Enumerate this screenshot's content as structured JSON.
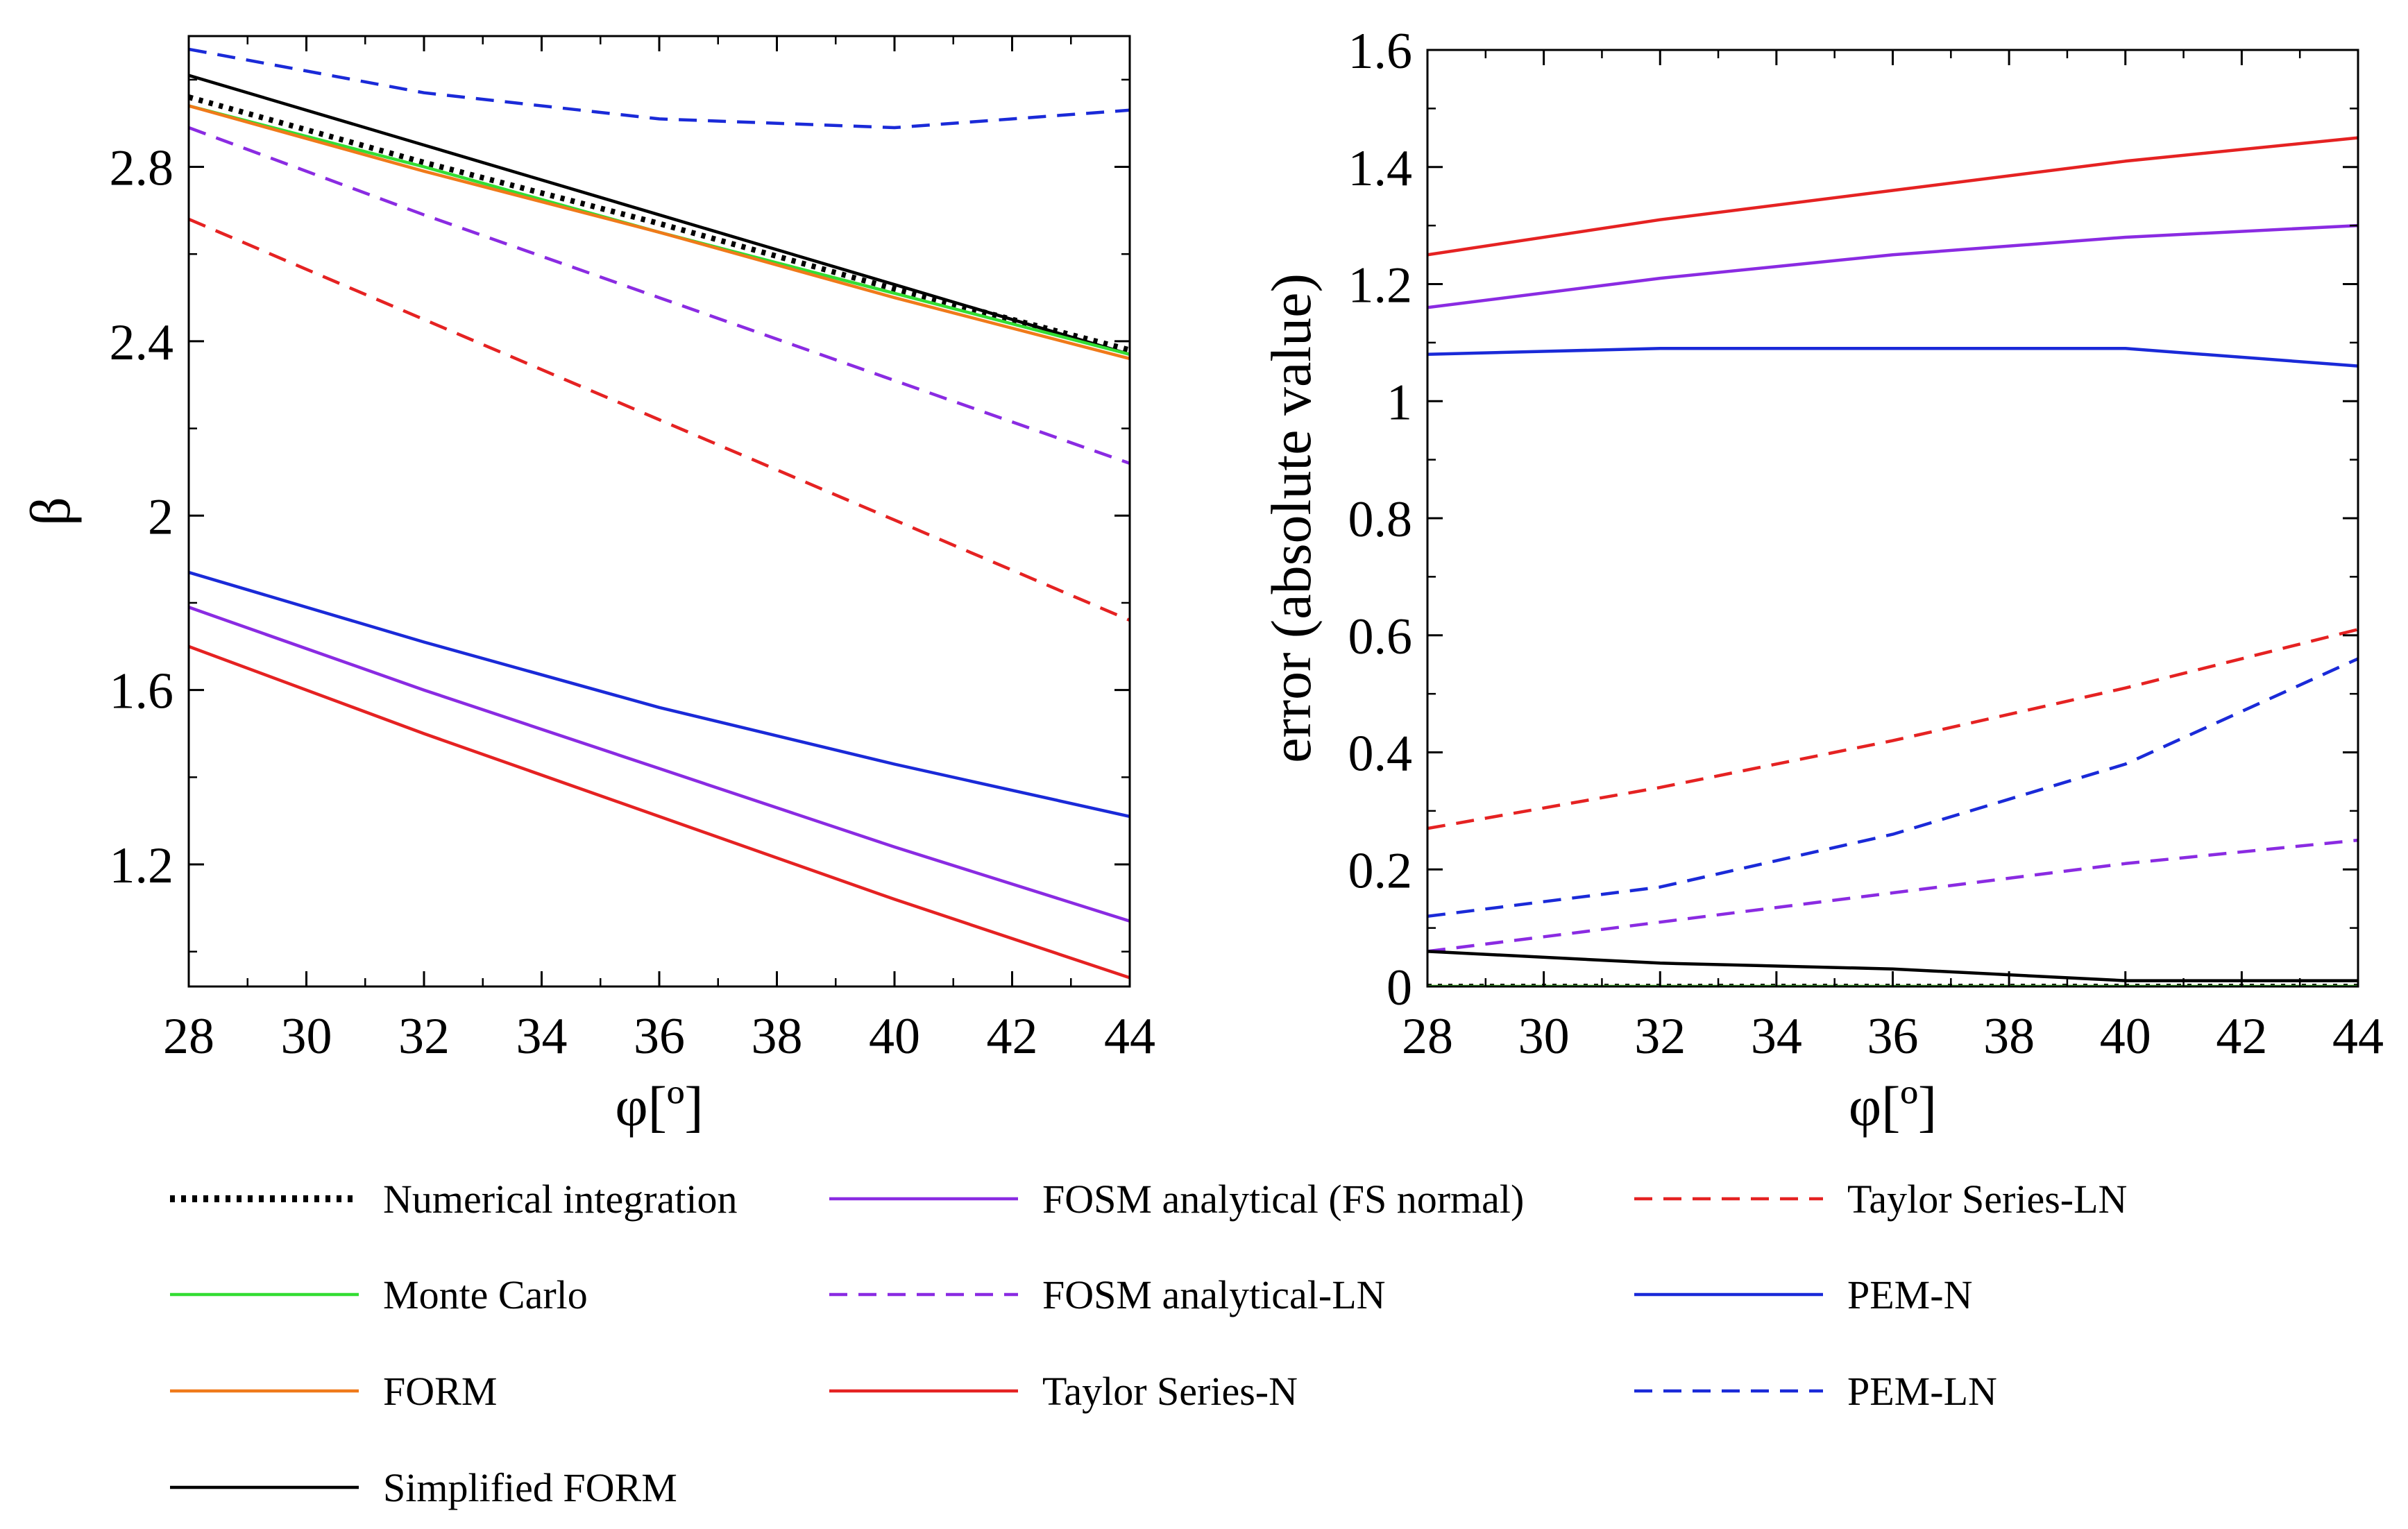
{
  "chart_data": [
    {
      "id": "left",
      "type": "line",
      "title": "",
      "xlabel": "φ[º]",
      "ylabel": "β",
      "xlim": [
        28,
        44
      ],
      "ylim": [
        0.92,
        3.1
      ],
      "xticks": [
        28,
        30,
        32,
        34,
        36,
        38,
        40,
        42,
        44
      ],
      "yticks": [
        1.2,
        1.6,
        2,
        2.4,
        2.8
      ],
      "ytick_labels": [
        "1.2",
        "1.6",
        "2",
        "2.4",
        "2.8"
      ],
      "x": [
        28,
        32,
        36,
        40,
        44
      ],
      "series": [
        {
          "key": "pem_ln",
          "values": [
            3.07,
            2.97,
            2.91,
            2.89,
            2.93
          ]
        },
        {
          "key": "simp_form",
          "values": [
            3.01,
            2.85,
            2.69,
            2.53,
            2.37
          ]
        },
        {
          "key": "num_int",
          "values": [
            2.96,
            2.81,
            2.67,
            2.52,
            2.38
          ]
        },
        {
          "key": "monte_carlo",
          "values": [
            2.94,
            2.8,
            2.65,
            2.51,
            2.37
          ]
        },
        {
          "key": "form",
          "values": [
            2.94,
            2.79,
            2.65,
            2.5,
            2.36
          ]
        },
        {
          "key": "fosm_ln",
          "values": [
            2.89,
            2.69,
            2.5,
            2.31,
            2.12
          ]
        },
        {
          "key": "taylor_ln",
          "values": [
            2.68,
            2.45,
            2.22,
            1.99,
            1.76
          ]
        },
        {
          "key": "pem_n",
          "values": [
            1.87,
            1.71,
            1.56,
            1.43,
            1.31
          ]
        },
        {
          "key": "fosm_fs",
          "values": [
            1.79,
            1.6,
            1.42,
            1.24,
            1.07
          ]
        },
        {
          "key": "taylor_n",
          "values": [
            1.7,
            1.5,
            1.31,
            1.12,
            0.94
          ]
        }
      ]
    },
    {
      "id": "right",
      "type": "line",
      "title": "",
      "xlabel": "φ[º]",
      "ylabel": "error (absolute value)",
      "xlim": [
        28,
        44
      ],
      "ylim": [
        0,
        1.6
      ],
      "xticks": [
        28,
        30,
        32,
        34,
        36,
        38,
        40,
        42,
        44
      ],
      "yticks": [
        0,
        0.2,
        0.4,
        0.6,
        0.8,
        1,
        1.2,
        1.4,
        1.6
      ],
      "ytick_labels": [
        "0",
        "0.2",
        "0.4",
        "0.6",
        "0.8",
        "1",
        "1.2",
        "1.4",
        "1.6"
      ],
      "x": [
        28,
        32,
        36,
        40,
        44
      ],
      "series": [
        {
          "key": "taylor_n",
          "values": [
            1.25,
            1.31,
            1.36,
            1.41,
            1.45
          ]
        },
        {
          "key": "fosm_fs",
          "values": [
            1.16,
            1.21,
            1.25,
            1.28,
            1.3
          ]
        },
        {
          "key": "pem_n",
          "values": [
            1.08,
            1.09,
            1.09,
            1.09,
            1.06
          ]
        },
        {
          "key": "taylor_ln",
          "values": [
            0.27,
            0.34,
            0.42,
            0.51,
            0.61
          ]
        },
        {
          "key": "pem_ln",
          "values": [
            0.12,
            0.17,
            0.26,
            0.38,
            0.56
          ]
        },
        {
          "key": "fosm_ln",
          "values": [
            0.06,
            0.11,
            0.16,
            0.21,
            0.25
          ]
        },
        {
          "key": "simp_form",
          "values": [
            0.06,
            0.04,
            0.03,
            0.01,
            0.01
          ]
        },
        {
          "key": "num_int",
          "values": [
            0.0,
            0.0,
            0.0,
            0.0,
            0.0
          ]
        },
        {
          "key": "form",
          "values": [
            0.0,
            0.0,
            0.0,
            0.0,
            0.0
          ]
        },
        {
          "key": "monte_carlo",
          "values": [
            0.0,
            0.0,
            0.0,
            0.0,
            0.0
          ]
        }
      ]
    }
  ],
  "legend": {
    "placement": "bottom",
    "items": [
      {
        "key": "num_int",
        "label": "Numerical integration",
        "color": "#000000",
        "style": "dotted"
      },
      {
        "key": "fosm_fs",
        "label": "FOSM analytical (FS normal)",
        "color": "#8a2be2",
        "style": "solid"
      },
      {
        "key": "taylor_ln",
        "label": "Taylor Series-LN",
        "color": "#e52222",
        "style": "dashed"
      },
      {
        "key": "monte_carlo",
        "label": "Monte Carlo",
        "color": "#33dd33",
        "style": "solid"
      },
      {
        "key": "fosm_ln",
        "label": "FOSM analytical-LN",
        "color": "#8a2be2",
        "style": "dashed"
      },
      {
        "key": "pem_n",
        "label": "PEM-N",
        "color": "#1a2ad8",
        "style": "solid"
      },
      {
        "key": "form",
        "label": "FORM",
        "color": "#f07a1a",
        "style": "solid"
      },
      {
        "key": "taylor_n",
        "label": "Taylor Series-N",
        "color": "#e52222",
        "style": "solid"
      },
      {
        "key": "pem_ln",
        "label": "PEM-LN",
        "color": "#1a2ad8",
        "style": "dashed"
      },
      {
        "key": "simp_form",
        "label": "Simplified FORM",
        "color": "#000000",
        "style": "solid"
      }
    ]
  }
}
